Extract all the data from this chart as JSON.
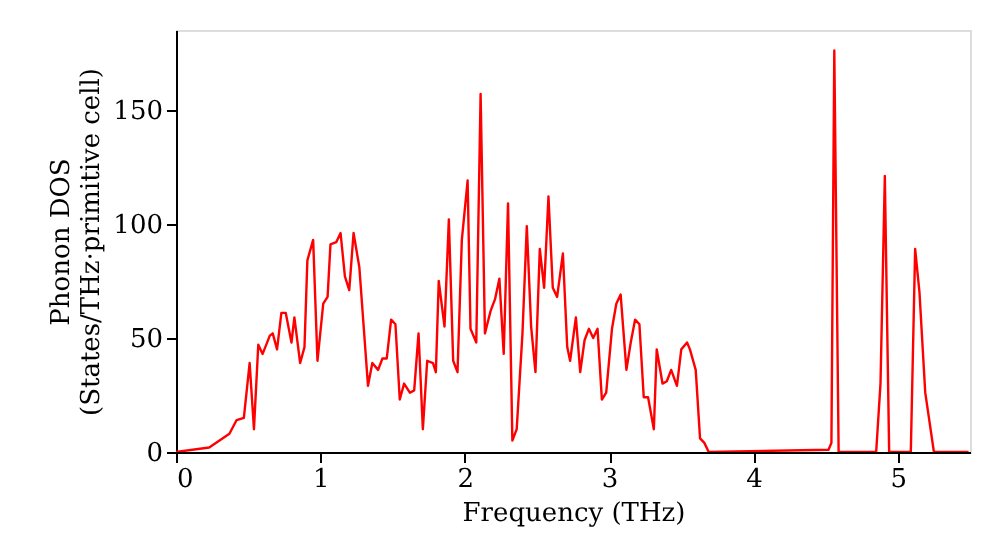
{
  "chart_data": {
    "type": "line",
    "xlabel": "Frequency (THz)",
    "ylabel": "Phonon DOS\n(States/THz·primitive cell)",
    "xlim": [
      0,
      5.5
    ],
    "ylim": [
      0,
      185
    ],
    "xticks": [
      0,
      1,
      2,
      3,
      4,
      5
    ],
    "yticks": [
      0,
      50,
      100,
      150
    ],
    "grid": false,
    "line_style": "solid",
    "series": [
      {
        "color": "#ff0000",
        "x": [
          0,
          0.23,
          0.37,
          0.42,
          0.47,
          0.51,
          0.54,
          0.57,
          0.6,
          0.65,
          0.67,
          0.7,
          0.73,
          0.76,
          0.8,
          0.82,
          0.86,
          0.89,
          0.91,
          0.95,
          0.98,
          1.02,
          1.05,
          1.07,
          1.11,
          1.14,
          1.17,
          1.2,
          1.23,
          1.27,
          1.33,
          1.36,
          1.4,
          1.43,
          1.46,
          1.49,
          1.52,
          1.55,
          1.58,
          1.62,
          1.65,
          1.68,
          1.71,
          1.74,
          1.78,
          1.8,
          1.82,
          1.86,
          1.89,
          1.92,
          1.95,
          1.98,
          2.02,
          2.04,
          2.08,
          2.11,
          2.14,
          2.18,
          2.21,
          2.24,
          2.27,
          2.3,
          2.33,
          2.36,
          2.4,
          2.43,
          2.46,
          2.49,
          2.52,
          2.55,
          2.58,
          2.61,
          2.64,
          2.68,
          2.71,
          2.73,
          2.77,
          2.8,
          2.83,
          2.86,
          2.89,
          2.92,
          2.95,
          2.98,
          3.02,
          3.05,
          3.08,
          3.12,
          3.15,
          3.18,
          3.21,
          3.24,
          3.27,
          3.31,
          3.33,
          3.37,
          3.4,
          3.43,
          3.47,
          3.5,
          3.54,
          3.56,
          3.6,
          3.63,
          3.66,
          3.69,
          4.52,
          4.54,
          4.56,
          4.59,
          4.85,
          4.88,
          4.91,
          4.94,
          5.09,
          5.12,
          5.15,
          5.19,
          5.25,
          5.49
        ],
        "values": [
          0,
          2,
          8,
          14,
          15,
          39,
          10,
          47,
          43,
          51,
          52,
          45,
          61,
          61,
          48,
          59,
          39,
          46,
          84,
          93,
          40,
          65,
          68,
          91,
          92,
          96,
          77,
          71,
          96,
          81,
          29,
          39,
          36,
          41,
          41,
          58,
          56,
          23,
          30,
          26,
          27,
          52,
          10,
          40,
          39,
          35,
          75,
          55,
          102,
          40,
          35,
          93,
          119,
          54,
          48,
          157,
          52,
          62,
          67,
          76,
          43,
          109,
          5,
          10,
          52,
          99,
          55,
          35,
          89,
          72,
          112,
          72,
          68,
          87,
          46,
          40,
          59,
          35,
          49,
          54,
          50,
          54,
          23,
          26,
          54,
          65,
          69,
          36,
          48,
          58,
          56,
          24,
          24,
          10,
          45,
          30,
          31,
          36,
          29,
          45,
          48,
          45,
          36,
          6,
          4,
          0,
          1,
          4,
          176,
          0,
          0,
          30,
          121,
          0,
          0,
          89,
          70,
          26,
          0,
          0
        ]
      }
    ]
  }
}
